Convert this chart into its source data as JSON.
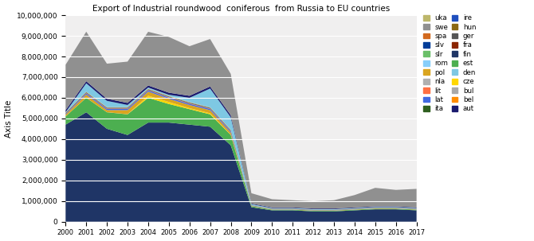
{
  "title": "Export of Industrial roundwood  coniferous  from Russia to EU countries",
  "ylabel": "Axis Title",
  "years": [
    2000,
    2001,
    2002,
    2003,
    2004,
    2005,
    2006,
    2007,
    2008,
    2009,
    2010,
    2011,
    2012,
    2013,
    2014,
    2015,
    2016,
    2017
  ],
  "stack_order": [
    "fin",
    "est",
    "cze",
    "pol",
    "lat",
    "lit",
    "ger",
    "ita",
    "hun",
    "fra",
    "ire",
    "slv",
    "slr",
    "bel",
    "nla",
    "rom",
    "uka",
    "spa",
    "bul",
    "den",
    "aut",
    "swe"
  ],
  "series": {
    "fin": [
      4700000,
      5300000,
      4500000,
      4200000,
      4800000,
      4800000,
      4700000,
      4600000,
      3700000,
      700000,
      550000,
      550000,
      500000,
      500000,
      550000,
      600000,
      600000,
      550000
    ],
    "est": [
      400000,
      700000,
      800000,
      1000000,
      1200000,
      900000,
      750000,
      600000,
      500000,
      50000,
      30000,
      30000,
      30000,
      30000,
      30000,
      30000,
      30000,
      30000
    ],
    "cze": [
      5000,
      5000,
      5000,
      5000,
      100000,
      100000,
      50000,
      50000,
      10000,
      5000,
      5000,
      5000,
      5000,
      5000,
      5000,
      5000,
      5000,
      5000
    ],
    "pol": [
      80000,
      150000,
      100000,
      200000,
      200000,
      150000,
      150000,
      150000,
      100000,
      10000,
      10000,
      10000,
      10000,
      10000,
      10000,
      10000,
      10000,
      10000
    ],
    "lat": [
      30000,
      60000,
      60000,
      60000,
      60000,
      60000,
      60000,
      60000,
      60000,
      10000,
      10000,
      10000,
      10000,
      10000,
      10000,
      10000,
      10000,
      10000
    ],
    "lit": [
      10000,
      20000,
      20000,
      20000,
      20000,
      20000,
      20000,
      20000,
      20000,
      5000,
      5000,
      5000,
      5000,
      5000,
      5000,
      5000,
      5000,
      5000
    ],
    "ger": [
      30000,
      30000,
      30000,
      30000,
      30000,
      30000,
      30000,
      30000,
      30000,
      10000,
      10000,
      10000,
      10000,
      10000,
      10000,
      10000,
      10000,
      10000
    ],
    "ita": [
      5000,
      5000,
      5000,
      5000,
      5000,
      5000,
      5000,
      5000,
      5000,
      2000,
      2000,
      2000,
      2000,
      2000,
      2000,
      2000,
      2000,
      2000
    ],
    "hun": [
      2000,
      2000,
      2000,
      2000,
      2000,
      2000,
      2000,
      2000,
      2000,
      1000,
      1000,
      1000,
      1000,
      1000,
      1000,
      1000,
      1000,
      1000
    ],
    "fra": [
      2000,
      2000,
      2000,
      2000,
      2000,
      2000,
      2000,
      2000,
      2000,
      500,
      500,
      500,
      500,
      500,
      500,
      500,
      500,
      500
    ],
    "ire": [
      500,
      500,
      500,
      500,
      500,
      500,
      500,
      500,
      500,
      100,
      100,
      100,
      100,
      100,
      100,
      100,
      100,
      100
    ],
    "slv": [
      1000,
      1000,
      1000,
      1000,
      1000,
      1000,
      1000,
      1000,
      1000,
      200,
      200,
      200,
      200,
      200,
      200,
      200,
      200,
      200
    ],
    "slr": [
      5000,
      5000,
      5000,
      5000,
      5000,
      5000,
      5000,
      5000,
      5000,
      1000,
      1000,
      1000,
      1000,
      1000,
      1000,
      1000,
      1000,
      1000
    ],
    "bel": [
      1000,
      1000,
      1000,
      1000,
      1000,
      1000,
      1000,
      1000,
      1000,
      200,
      200,
      200,
      200,
      200,
      200,
      200,
      200,
      200
    ],
    "nla": [
      5000,
      5000,
      5000,
      5000,
      5000,
      5000,
      5000,
      5000,
      5000,
      1000,
      1000,
      1000,
      1000,
      1000,
      1000,
      1000,
      1000,
      1000
    ],
    "rom": [
      2000,
      2000,
      2000,
      2000,
      2000,
      2000,
      2000,
      2000,
      2000,
      500,
      500,
      500,
      500,
      500,
      500,
      500,
      500,
      500
    ],
    "uka": [
      10000,
      10000,
      10000,
      10000,
      10000,
      10000,
      10000,
      10000,
      10000,
      2000,
      2000,
      2000,
      2000,
      2000,
      2000,
      2000,
      2000,
      2000
    ],
    "spa": [
      2000,
      2000,
      2000,
      2000,
      2000,
      2000,
      2000,
      2000,
      2000,
      500,
      500,
      500,
      500,
      500,
      500,
      500,
      500,
      500
    ],
    "bul": [
      2000,
      2000,
      2000,
      2000,
      2000,
      2000,
      2000,
      2000,
      2000,
      500,
      500,
      500,
      500,
      500,
      500,
      500,
      500,
      500
    ],
    "den": [
      10000,
      400000,
      300000,
      100000,
      50000,
      50000,
      200000,
      900000,
      600000,
      50000,
      30000,
      30000,
      30000,
      30000,
      30000,
      30000,
      30000,
      30000
    ],
    "aut": [
      100000,
      100000,
      100000,
      100000,
      100000,
      100000,
      100000,
      100000,
      100000,
      30000,
      30000,
      30000,
      30000,
      30000,
      30000,
      30000,
      30000,
      30000
    ],
    "swe": [
      2200000,
      2400000,
      1700000,
      2000000,
      2600000,
      2700000,
      2400000,
      2300000,
      2000000,
      500000,
      400000,
      350000,
      350000,
      400000,
      600000,
      900000,
      800000,
      900000
    ]
  },
  "colors": {
    "fin": "#1F3566",
    "est": "#4CAF50",
    "cze": "#FFD700",
    "pol": "#DAA520",
    "lat": "#4169E1",
    "lit": "#FF7043",
    "ger": "#555555",
    "ita": "#2E5E1E",
    "hun": "#8B6914",
    "fra": "#8B2500",
    "ire": "#1F4FBE",
    "slv": "#003d99",
    "slr": "#6ABF69",
    "bel": "#FF8C00",
    "nla": "#B0B0B0",
    "rom": "#87CEFA",
    "uka": "#BDB76B",
    "spa": "#D2691E",
    "bul": "#A9A9A9",
    "den": "#7ec8e3",
    "aut": "#1a1a6e",
    "swe": "#909090"
  },
  "legend_left": [
    "uka",
    "spa",
    "slr",
    "pol",
    "lit",
    "ita",
    "hun",
    "fra",
    "est",
    "cze",
    "bel"
  ],
  "legend_right": [
    "swe",
    "slv",
    "rom",
    "nla",
    "lat",
    "ire",
    "ger",
    "fin",
    "den",
    "bul",
    "aut"
  ],
  "ylim": [
    0,
    10000000
  ],
  "yticks": [
    0,
    1000000,
    2000000,
    3000000,
    4000000,
    5000000,
    6000000,
    7000000,
    8000000,
    9000000,
    10000000
  ],
  "fig_bg": "#ffffff",
  "ax_bg": "#f0efef"
}
